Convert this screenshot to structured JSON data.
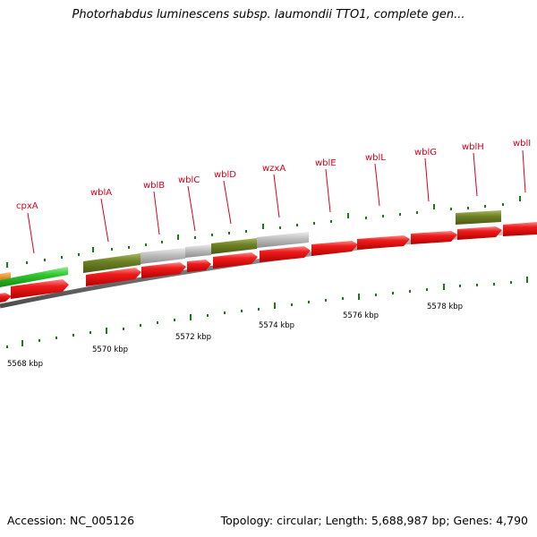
{
  "title": "Photorhabdus luminescens subsp. laumondii TTO1, complete gen...",
  "footer": {
    "accession": "Accession: NC_005126",
    "topology": "Topology: circular; Length: 5,688,987 bp; Genes: 4,790"
  },
  "gene_labels": [
    "cpxA",
    "wblA",
    "wblB",
    "wblC",
    "wblD",
    "wzxA",
    "wblE",
    "wblL",
    "wblG",
    "wblH",
    "wblI"
  ],
  "scale_labels": [
    "5568 kbp",
    "5570 kbp",
    "5572 kbp",
    "5574 kbp",
    "5576 kbp",
    "5578 kbp"
  ],
  "colors": {
    "cds": "#e8141e",
    "gene_function_green": "#6b7f22",
    "gene_function_gray": "#b8b8b8",
    "bright_green": "#2ec62e",
    "orange": "#f0921a",
    "backbone": "#8a8a8a",
    "tick": "#1a7a1a",
    "label": "#d9001b"
  }
}
